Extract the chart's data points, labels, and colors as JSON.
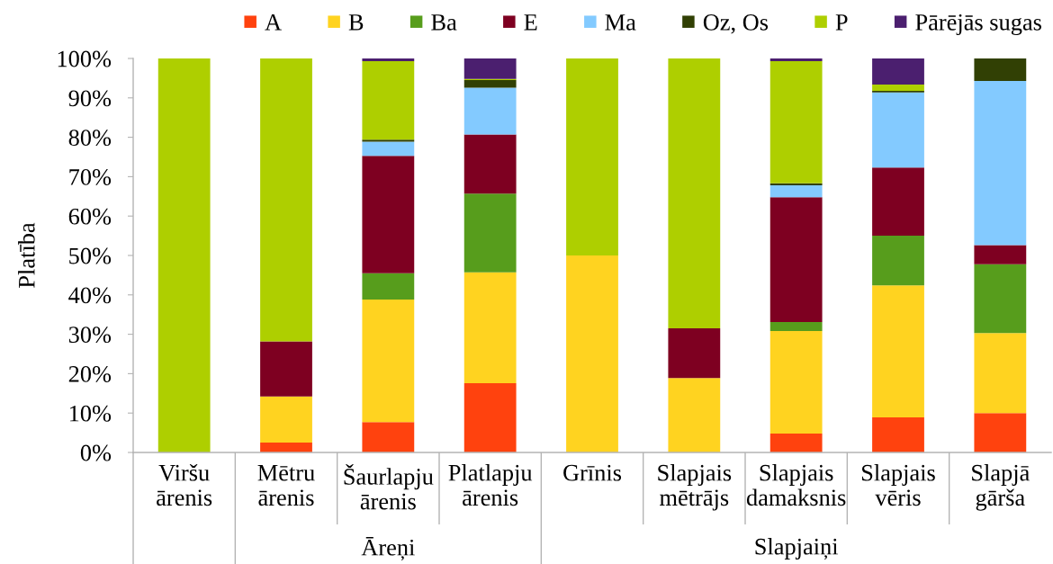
{
  "chart_data": {
    "type": "bar",
    "stacked": true,
    "ylabel": "Platība",
    "categories": [
      "Viršu ārenis",
      "Mētru ārenis",
      "Šaurlapju ārenis",
      "Platlapju ārenis",
      "Grīnis",
      "Slapjais mētrājs",
      "Slapjais damaksnis",
      "Slapjais vēris",
      "Slapjā gārša"
    ],
    "series": [
      {
        "name": "A",
        "color": "#ff420e",
        "values": [
          null,
          2.5,
          7.7,
          17.6,
          null,
          null,
          4.8,
          8.9,
          10.0
        ]
      },
      {
        "name": "B",
        "color": "#ffd320",
        "values": [
          null,
          11.7,
          31.1,
          28.1,
          50.0,
          18.9,
          26.0,
          33.5,
          20.3
        ]
      },
      {
        "name": "Ba",
        "color": "#579d1c",
        "values": [
          null,
          null,
          6.7,
          20.0,
          null,
          null,
          2.3,
          12.6,
          17.5
        ]
      },
      {
        "name": "E",
        "color": "#7e0021",
        "values": [
          null,
          14.0,
          29.8,
          15.0,
          null,
          12.6,
          31.7,
          17.3,
          4.8
        ]
      },
      {
        "name": "Ma",
        "color": "#83caff",
        "values": [
          null,
          null,
          3.6,
          11.9,
          null,
          null,
          3.0,
          19.1,
          41.7
        ]
      },
      {
        "name": "Oz, Os",
        "color": "#314004",
        "values": [
          null,
          null,
          0.5,
          1.9,
          null,
          null,
          0.5,
          0.4,
          5.7
        ]
      },
      {
        "name": "P",
        "color": "#aecf00",
        "values": [
          100.0,
          71.8,
          19.9,
          0.3,
          50.0,
          68.5,
          31.0,
          1.6,
          null
        ]
      },
      {
        "name": "Pārējās sugas",
        "color": "#4b1f6f",
        "values": [
          null,
          null,
          0.7,
          5.2,
          null,
          null,
          0.7,
          6.6,
          null
        ]
      }
    ],
    "ylim": [
      0,
      100
    ],
    "yticks": [
      {
        "value": 0,
        "label": "0%"
      },
      {
        "value": 10,
        "label": "10%"
      },
      {
        "value": 20,
        "label": "20%"
      },
      {
        "value": 30,
        "label": "30%"
      },
      {
        "value": 40,
        "label": "40%"
      },
      {
        "value": 50,
        "label": "50%"
      },
      {
        "value": 60,
        "label": "60%"
      },
      {
        "value": 70,
        "label": "70%"
      },
      {
        "value": 80,
        "label": "80%"
      },
      {
        "value": 90,
        "label": "90%"
      },
      {
        "value": 100,
        "label": "100%"
      }
    ],
    "legend": "top",
    "annotations": [
      "Āreņi",
      "Slapjaiņi"
    ]
  }
}
